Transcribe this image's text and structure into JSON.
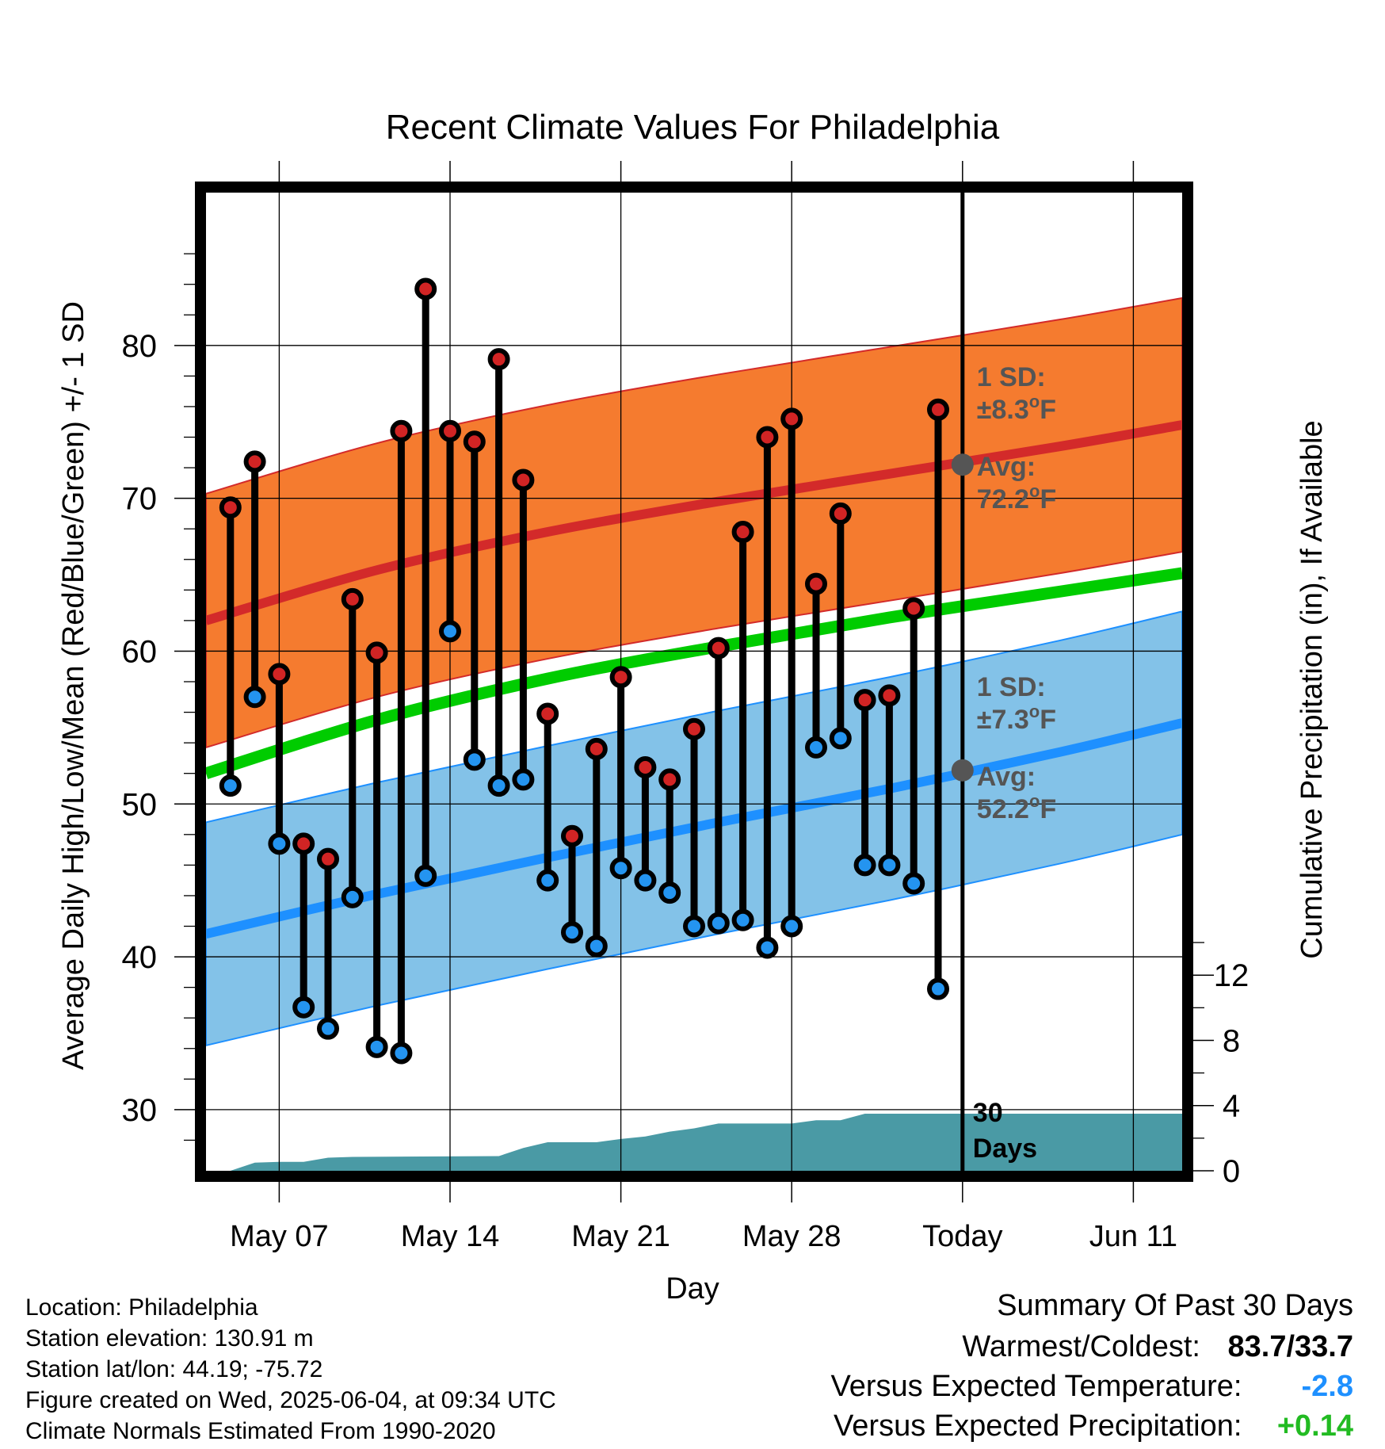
{
  "colors": {
    "high_band": "#f57b2f",
    "high_line": "#d32a2a",
    "low_band": "#83c2e8",
    "low_line": "#1e90ff",
    "mean_line": "#00cc00",
    "precip": "#4a9aa5",
    "high_marker": "#d12424",
    "low_marker": "#2494f0",
    "today_marker": "#555555",
    "annotation_text": "#555555",
    "temp_anomaly": "#1e90ff",
    "precip_anomaly": "#22bb22"
  },
  "chart_data": {
    "type": "line",
    "title": "Recent Climate Values For Philadelphia",
    "xlabel": "Day",
    "ylabel": "Average Daily High/Low/Mean (Red/Blue/Green) +/- 1 SD",
    "y2label": "Cumulative Precipitation (in), If Available",
    "xlim": [
      "2025-05-04",
      "2025-06-13"
    ],
    "ylim": [
      26,
      90
    ],
    "y2lim": [
      0,
      60
    ],
    "yticks": [
      30,
      40,
      50,
      60,
      70,
      80
    ],
    "y2ticks": [
      0,
      4,
      8,
      12
    ],
    "xtick_labels": [
      {
        "date": "2025-05-07",
        "label": "May 07"
      },
      {
        "date": "2025-05-14",
        "label": "May 14"
      },
      {
        "date": "2025-05-21",
        "label": "May 21"
      },
      {
        "date": "2025-05-28",
        "label": "May 28"
      },
      {
        "date": "2025-06-04",
        "label": "Today"
      },
      {
        "date": "2025-06-11",
        "label": "Jun 11"
      }
    ],
    "today": "2025-06-04",
    "grid": true,
    "normals": {
      "dates": [
        "2025-05-04",
        "2025-05-11",
        "2025-05-18",
        "2025-05-25",
        "2025-06-01",
        "2025-06-08",
        "2025-06-13"
      ],
      "avg_high": [
        62.0,
        65.3,
        67.8,
        69.8,
        71.6,
        73.4,
        74.8
      ],
      "avg_low": [
        41.5,
        44.1,
        46.5,
        48.8,
        51.0,
        53.4,
        55.3
      ],
      "mean": [
        52.0,
        55.5,
        58.2,
        60.3,
        62.2,
        63.9,
        65.1
      ]
    },
    "sd_high": 8.3,
    "sd_low": 7.3,
    "series": [
      {
        "name": "High",
        "values": [
          69.4,
          72.4,
          58.5,
          47.4,
          46.4,
          63.4,
          59.9,
          74.4,
          83.7,
          74.4,
          73.7,
          79.1,
          71.2,
          55.9,
          47.9,
          53.6,
          58.3,
          52.4,
          51.6,
          54.9,
          60.2,
          67.8,
          74.0,
          75.2,
          64.4,
          69.0,
          56.8,
          57.1,
          62.8,
          75.8
        ]
      },
      {
        "name": "Low",
        "values": [
          51.2,
          57.0,
          47.4,
          36.7,
          35.3,
          43.9,
          34.1,
          33.7,
          45.3,
          61.3,
          52.9,
          51.2,
          51.6,
          45.0,
          41.6,
          40.7,
          45.8,
          45.0,
          44.2,
          42.0,
          42.2,
          42.4,
          40.6,
          42.0,
          53.7,
          54.3,
          46.0,
          46.0,
          44.8,
          37.9
        ]
      }
    ],
    "dates": [
      "2025-05-05",
      "2025-05-06",
      "2025-05-07",
      "2025-05-08",
      "2025-05-09",
      "2025-05-10",
      "2025-05-11",
      "2025-05-12",
      "2025-05-13",
      "2025-05-14",
      "2025-05-15",
      "2025-05-16",
      "2025-05-17",
      "2025-05-18",
      "2025-05-19",
      "2025-05-20",
      "2025-05-21",
      "2025-05-22",
      "2025-05-23",
      "2025-05-24",
      "2025-05-25",
      "2025-05-26",
      "2025-05-27",
      "2025-05-28",
      "2025-05-29",
      "2025-05-30",
      "2025-05-31",
      "2025-06-01",
      "2025-06-02",
      "2025-06-03"
    ],
    "precip": {
      "dates": [
        "2025-05-05",
        "2025-05-06",
        "2025-05-07",
        "2025-05-08",
        "2025-05-09",
        "2025-05-10",
        "2025-05-16",
        "2025-05-17",
        "2025-05-18",
        "2025-05-20",
        "2025-05-21",
        "2025-05-22",
        "2025-05-23",
        "2025-05-24",
        "2025-05-25",
        "2025-05-28",
        "2025-05-29",
        "2025-05-30",
        "2025-05-31",
        "2025-06-13"
      ],
      "values": [
        0.0,
        0.5,
        0.55,
        0.55,
        0.8,
        0.85,
        0.9,
        1.4,
        1.75,
        1.75,
        1.95,
        2.1,
        2.4,
        2.6,
        2.9,
        2.9,
        3.1,
        3.1,
        3.5,
        3.5
      ]
    },
    "annotations": {
      "high_sd_label": "1 SD:",
      "high_sd_value": "±8.3",
      "high_avg_label": "Avg:",
      "high_avg_value": "72.2",
      "low_sd_label": "1 SD:",
      "low_sd_value": "±7.3",
      "low_avg_label": "Avg:",
      "low_avg_value": "52.2",
      "degree_unit": "o",
      "unit": "F",
      "days_value": "30",
      "days_label": "Days"
    }
  },
  "info": {
    "location": "Location: Philadelphia",
    "elevation": "Station elevation: 130.91 m",
    "latlon": "Station lat/lon: 44.19; -75.72",
    "created": "Figure created on Wed, 2025-06-04, at 09:34 UTC",
    "normals": "Climate Normals Estimated From 1990-2020"
  },
  "summary": {
    "title": "Summary Of Past 30 Days",
    "warm_cold_label": "Warmest/Coldest:",
    "warm_cold_value": "83.7/33.7",
    "temp_label": "Versus Expected Temperature:",
    "temp_value": "-2.8",
    "precip_label": "Versus Expected Precipitation:",
    "precip_value": "+0.14"
  }
}
